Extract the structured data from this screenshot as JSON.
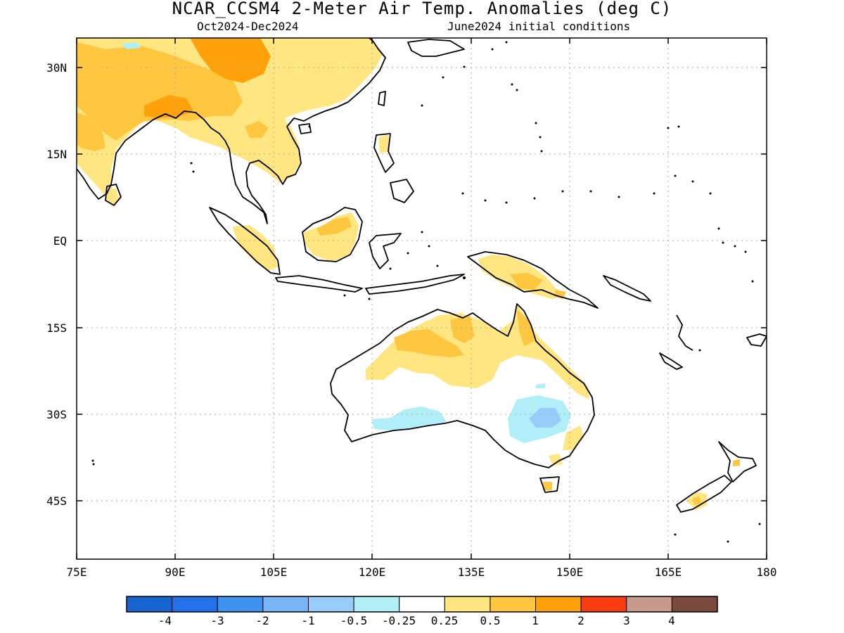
{
  "title": "NCAR_CCSM4 2-Meter Air Temp. Anomalies (deg C)",
  "subtitle_left": "Oct2024-Dec2024",
  "subtitle_right": "June2024 initial conditions",
  "longitude_ticks": [
    "75E",
    "90E",
    "105E",
    "120E",
    "135E",
    "150E",
    "165E",
    "180"
  ],
  "latitude_ticks": [
    "30N",
    "15N",
    "EQ",
    "15S",
    "30S",
    "45S"
  ],
  "colorbar": {
    "labels": [
      "-4",
      "-3",
      "-2",
      "-1",
      "-0.5",
      "-0.25",
      "0.25",
      "0.5",
      "1",
      "2",
      "3",
      "4"
    ],
    "colors": [
      "#1763d0",
      "#2470e8",
      "#3f93ef",
      "#78b4f6",
      "#97cdf8",
      "#b0eef8",
      "#ffffff",
      "#ffe680",
      "#ffc640",
      "#ffa10a",
      "#fa3c10",
      "#c89a8c",
      "#7a4a3c"
    ]
  },
  "anomaly_colors": {
    "warm_025_05": "#ffe680",
    "warm_05_1": "#ffc640",
    "warm_1_2": "#ffa10a",
    "cool_025_05": "#b0eef8",
    "cool_05_1": "#97cdf8"
  }
}
